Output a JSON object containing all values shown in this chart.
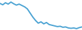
{
  "x": [
    0,
    1,
    2,
    3,
    4,
    5,
    6,
    7,
    8,
    9,
    10,
    11,
    12,
    13,
    14,
    15,
    16,
    17,
    18,
    19,
    20,
    21,
    22,
    23,
    24,
    25,
    26,
    27,
    28,
    29,
    30
  ],
  "y": [
    88,
    84,
    90,
    86,
    92,
    87,
    83,
    86,
    82,
    78,
    72,
    60,
    48,
    38,
    30,
    34,
    28,
    32,
    26,
    24,
    22,
    20,
    21,
    18,
    19,
    16,
    15,
    16,
    14,
    17,
    19
  ],
  "line_color": "#4BA3D3",
  "linewidth": 1.4,
  "background_color": "#ffffff",
  "ylim": [
    10,
    98
  ],
  "xlim": [
    0,
    30
  ]
}
